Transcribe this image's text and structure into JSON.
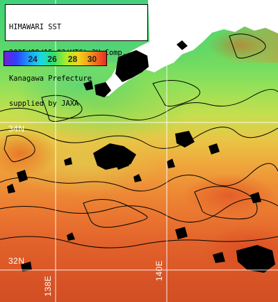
{
  "title": {
    "line1": "HIMAWARI SST",
    "line2": "2025/09/15 03(UTC) 3H Comp.",
    "line3": "Kanagawa Prefecture",
    "line4": "supplied by JAXA"
  },
  "legend": {
    "labels": [
      "24",
      "26",
      "28",
      "30"
    ],
    "colors": [
      "#7020d0",
      "#3040ff",
      "#1a9cff",
      "#19d8e6",
      "#2fe06a",
      "#a6ea2e",
      "#f0d818",
      "#f6961a",
      "#e82a24"
    ]
  },
  "grid": {
    "lat_labels": [
      "34N",
      "32N"
    ],
    "lon_labels": [
      "138E",
      "140E"
    ]
  },
  "land_color": "#ffffff",
  "cloud_mask_color": "#000000"
}
